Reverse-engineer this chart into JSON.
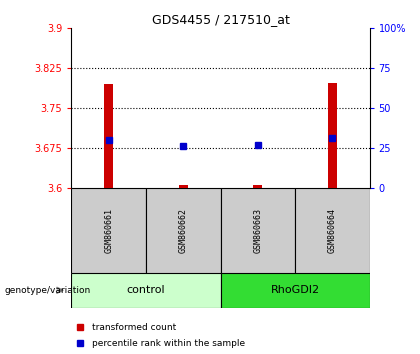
{
  "title": "GDS4455 / 217510_at",
  "samples": [
    "GSM860661",
    "GSM860662",
    "GSM860663",
    "GSM860664"
  ],
  "groups": [
    "control",
    "control",
    "RhoGDI2",
    "RhoGDI2"
  ],
  "transformed_counts": [
    3.795,
    3.605,
    3.605,
    3.797
  ],
  "percentile_ranks": [
    30,
    26,
    27,
    31
  ],
  "ylim_left": [
    3.6,
    3.9
  ],
  "ylim_right": [
    0,
    100
  ],
  "yticks_left": [
    3.6,
    3.675,
    3.75,
    3.825,
    3.9
  ],
  "yticks_right": [
    0,
    25,
    50,
    75,
    100
  ],
  "ytick_labels_left": [
    "3.6",
    "3.675",
    "3.75",
    "3.825",
    "3.9"
  ],
  "ytick_labels_right": [
    "0",
    "25",
    "50",
    "75",
    "100%"
  ],
  "bar_color": "#cc0000",
  "marker_color": "#0000cc",
  "control_color": "#ccffcc",
  "rhoGDI2_color": "#33dd33",
  "sample_box_color": "#cccccc",
  "bar_bottom": 3.6,
  "legend_red": "transformed count",
  "legend_blue": "percentile rank within the sample",
  "genotype_label": "genotype/variation"
}
